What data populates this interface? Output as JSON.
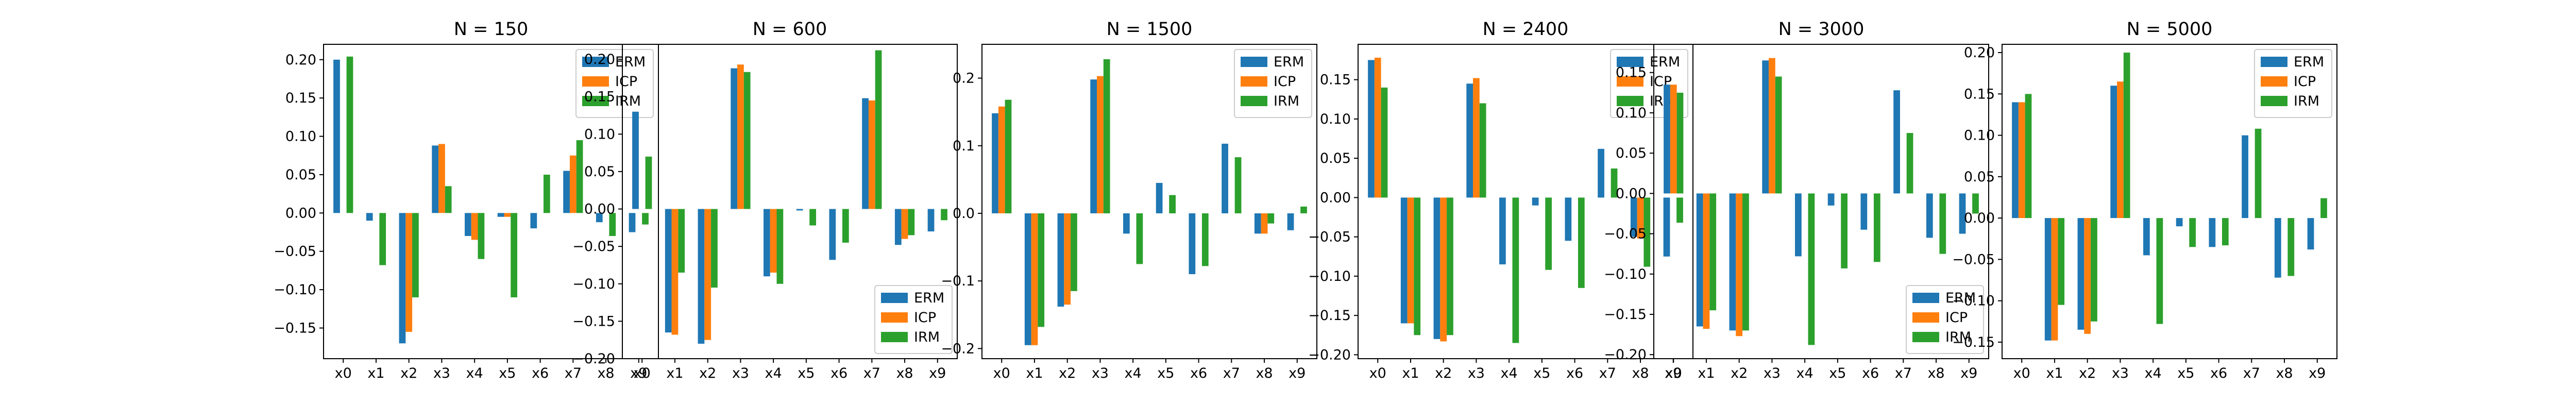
{
  "colors": {
    "ERM": "#1f77b4",
    "ICP": "#ff7f0e",
    "IRM": "#2ca02c"
  },
  "chart_data": [
    {
      "type": "bar",
      "title": "N = 150",
      "xlabel": "",
      "ylabel": "",
      "grid": false,
      "legend_placement": "top-right",
      "categories": [
        "x0",
        "x1",
        "x2",
        "x3",
        "x4",
        "x5",
        "x6",
        "x7",
        "x8",
        "x9"
      ],
      "ylim": [
        -0.19,
        0.22
      ],
      "yticks": [
        -0.15,
        -0.1,
        -0.05,
        0.0,
        0.05,
        0.1,
        0.15,
        0.2
      ],
      "ytick_labels": [
        "−0.15",
        "−0.10",
        "−0.05",
        "0.00",
        "0.05",
        "0.10",
        "0.15",
        "0.20"
      ],
      "series": [
        {
          "name": "ERM",
          "values": [
            0.2,
            -0.01,
            -0.17,
            0.088,
            -0.03,
            -0.005,
            -0.02,
            0.055,
            -0.012,
            -0.025
          ]
        },
        {
          "name": "ICP",
          "values": [
            0.0,
            0.0,
            -0.155,
            0.09,
            -0.035,
            -0.005,
            0.0,
            0.075,
            0.0,
            0.0
          ]
        },
        {
          "name": "IRM",
          "values": [
            0.204,
            -0.068,
            -0.11,
            0.035,
            -0.06,
            -0.11,
            0.05,
            0.095,
            -0.03,
            -0.015
          ]
        }
      ]
    },
    {
      "type": "bar",
      "title": "N = 600",
      "xlabel": "",
      "ylabel": "",
      "grid": false,
      "legend_placement": "bottom-right",
      "categories": [
        "x0",
        "x1",
        "x2",
        "x3",
        "x4",
        "x5",
        "x6",
        "x7",
        "x8",
        "x9"
      ],
      "ylim": [
        -0.2,
        0.22
      ],
      "yticks": [
        -0.2,
        -0.15,
        -0.1,
        -0.05,
        0.0,
        0.05,
        0.1,
        0.15,
        0.2
      ],
      "ytick_labels": [
        "−0.20",
        "−0.15",
        "−0.10",
        "−0.05",
        "0.00",
        "0.05",
        "0.10",
        "0.15",
        "0.20"
      ],
      "series": [
        {
          "name": "ERM",
          "values": [
            0.13,
            -0.165,
            -0.18,
            0.188,
            -0.09,
            -0.002,
            -0.068,
            0.148,
            -0.048,
            -0.03
          ]
        },
        {
          "name": "ICP",
          "values": [
            0.0,
            -0.168,
            -0.175,
            0.193,
            -0.085,
            0.0,
            0.0,
            0.145,
            -0.04,
            0.0
          ]
        },
        {
          "name": "IRM",
          "values": [
            0.07,
            -0.085,
            -0.105,
            0.183,
            -0.1,
            -0.022,
            -0.045,
            0.212,
            -0.035,
            -0.015
          ]
        }
      ]
    },
    {
      "type": "bar",
      "title": "N = 1500",
      "xlabel": "",
      "ylabel": "",
      "grid": false,
      "legend_placement": "top-right",
      "categories": [
        "x0",
        "x1",
        "x2",
        "x3",
        "x4",
        "x5",
        "x6",
        "x7",
        "x8",
        "x9"
      ],
      "ylim": [
        -0.215,
        0.25
      ],
      "yticks": [
        -0.2,
        -0.1,
        0.0,
        0.1,
        0.2
      ],
      "ytick_labels": [
        "−0.2",
        "−0.1",
        "0.0",
        "0.1",
        "0.2"
      ],
      "series": [
        {
          "name": "ERM",
          "values": [
            0.148,
            -0.195,
            -0.138,
            0.198,
            -0.03,
            0.045,
            -0.09,
            0.103,
            -0.03,
            -0.025
          ]
        },
        {
          "name": "ICP",
          "values": [
            0.158,
            -0.195,
            -0.135,
            0.203,
            0.0,
            0.0,
            0.0,
            0.0,
            -0.03,
            0.0
          ]
        },
        {
          "name": "IRM",
          "values": [
            0.168,
            -0.168,
            -0.115,
            0.228,
            -0.075,
            0.027,
            -0.078,
            0.083,
            -0.015,
            0.01
          ]
        }
      ]
    },
    {
      "type": "bar",
      "title": "N = 2400",
      "xlabel": "",
      "ylabel": "",
      "grid": false,
      "legend_placement": "top-right",
      "categories": [
        "x0",
        "x1",
        "x2",
        "x3",
        "x4",
        "x5",
        "x6",
        "x7",
        "x8",
        "x9"
      ],
      "ylim": [
        -0.205,
        0.195
      ],
      "yticks": [
        -0.2,
        -0.15,
        -0.1,
        -0.05,
        0.0,
        0.05,
        0.1,
        0.15
      ],
      "ytick_labels": [
        "−0.20",
        "−0.15",
        "−0.10",
        "−0.05",
        "0.00",
        "0.05",
        "0.10",
        "0.15"
      ],
      "series": [
        {
          "name": "ERM",
          "values": [
            0.175,
            -0.16,
            -0.18,
            0.145,
            -0.085,
            -0.01,
            -0.055,
            0.062,
            -0.05,
            -0.075
          ]
        },
        {
          "name": "ICP",
          "values": [
            0.178,
            -0.16,
            -0.183,
            0.152,
            0.0,
            0.0,
            0.0,
            0.0,
            -0.052,
            0.0
          ]
        },
        {
          "name": "IRM",
          "values": [
            0.14,
            -0.175,
            -0.175,
            0.12,
            -0.185,
            -0.092,
            -0.115,
            0.037,
            -0.088,
            -0.032
          ]
        }
      ]
    },
    {
      "type": "bar",
      "title": "N = 3000",
      "xlabel": "",
      "ylabel": "",
      "grid": false,
      "legend_placement": "bottom-right",
      "categories": [
        "x0",
        "x1",
        "x2",
        "x3",
        "x4",
        "x5",
        "x6",
        "x7",
        "x8",
        "x9"
      ],
      "ylim": [
        -0.205,
        0.185
      ],
      "yticks": [
        -0.2,
        -0.15,
        -0.1,
        -0.05,
        0.0,
        0.05,
        0.1,
        0.15
      ],
      "ytick_labels": [
        "−0.20",
        "−0.15",
        "−0.10",
        "−0.05",
        "0.00",
        "0.05",
        "0.10",
        "0.15"
      ],
      "series": [
        {
          "name": "ERM",
          "values": [
            0.135,
            -0.165,
            -0.17,
            0.165,
            -0.078,
            -0.015,
            -0.045,
            0.128,
            -0.055,
            -0.05
          ]
        },
        {
          "name": "ICP",
          "values": [
            0.135,
            -0.168,
            -0.177,
            0.168,
            0.0,
            0.0,
            0.0,
            0.0,
            0.0,
            0.0
          ]
        },
        {
          "name": "IRM",
          "values": [
            0.125,
            -0.145,
            -0.17,
            0.145,
            -0.188,
            -0.093,
            -0.085,
            0.075,
            -0.075,
            -0.025
          ]
        }
      ]
    },
    {
      "type": "bar",
      "title": "N = 5000",
      "xlabel": "",
      "ylabel": "",
      "grid": false,
      "legend_placement": "top-right",
      "categories": [
        "x0",
        "x1",
        "x2",
        "x3",
        "x4",
        "x5",
        "x6",
        "x7",
        "x8",
        "x9"
      ],
      "ylim": [
        -0.17,
        0.21
      ],
      "yticks": [
        -0.15,
        -0.1,
        -0.05,
        0.0,
        0.05,
        0.1,
        0.15,
        0.2
      ],
      "ytick_labels": [
        "−0.15",
        "−0.10",
        "−0.05",
        "0.00",
        "0.05",
        "0.10",
        "0.15",
        "0.20"
      ],
      "series": [
        {
          "name": "ERM",
          "values": [
            0.14,
            -0.148,
            -0.135,
            0.16,
            -0.045,
            -0.01,
            -0.035,
            0.1,
            -0.072,
            -0.038
          ]
        },
        {
          "name": "ICP",
          "values": [
            0.14,
            -0.148,
            -0.14,
            0.165,
            0.0,
            0.0,
            0.0,
            0.0,
            0.0,
            0.0
          ]
        },
        {
          "name": "IRM",
          "values": [
            0.15,
            -0.105,
            -0.125,
            0.2,
            -0.128,
            -0.035,
            -0.033,
            0.108,
            -0.07,
            0.024
          ]
        }
      ]
    }
  ]
}
